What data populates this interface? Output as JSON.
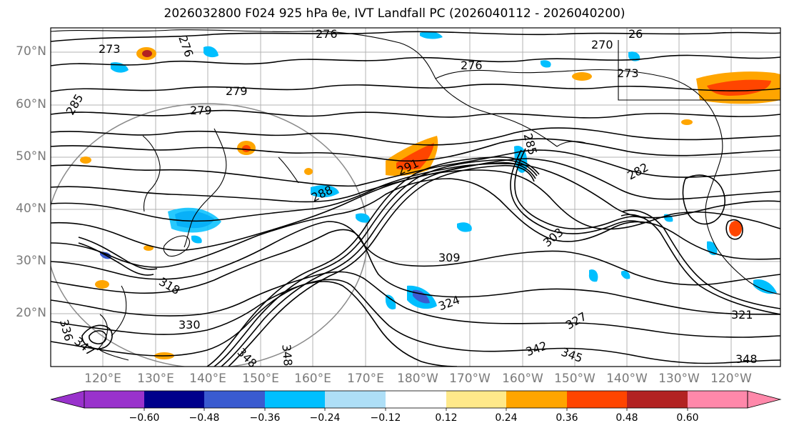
{
  "title": "2026032800 F024 925 hPa θe, IVT Landfall PC (2026040112 - 2026040200)",
  "map": {
    "lat_labels": [
      "70°N",
      "60°N",
      "50°N",
      "40°N",
      "30°N",
      "20°N"
    ],
    "lon_labels": [
      "120°E",
      "130°E",
      "140°E",
      "150°E",
      "160°E",
      "170°E",
      "180°W",
      "170°W",
      "160°W",
      "150°W",
      "140°W",
      "130°W",
      "120°W"
    ],
    "contour_labels": [
      "273",
      "276",
      "276",
      "276",
      "270",
      "26",
      "273",
      "285",
      "279",
      "279",
      "285",
      "282",
      "288",
      "291",
      "303",
      "309",
      "318",
      "321",
      "324",
      "327",
      "330",
      "336",
      "342",
      "345",
      "348",
      "348",
      "348"
    ],
    "coastline_color": "#000000",
    "gridline_color": "#b3b3b3"
  },
  "colorbar": {
    "ticks": [
      "−0.60",
      "−0.48",
      "−0.36",
      "−0.24",
      "−0.12",
      "0.12",
      "0.24",
      "0.36",
      "0.48",
      "0.60"
    ],
    "colors": [
      "#9932cc",
      "#00008b",
      "#3a5bd0",
      "#00bfff",
      "#aedff7",
      "#ffffff",
      "#ffe98a",
      "#ffa500",
      "#ff4500",
      "#b22222",
      "#ff88aa"
    ]
  }
}
